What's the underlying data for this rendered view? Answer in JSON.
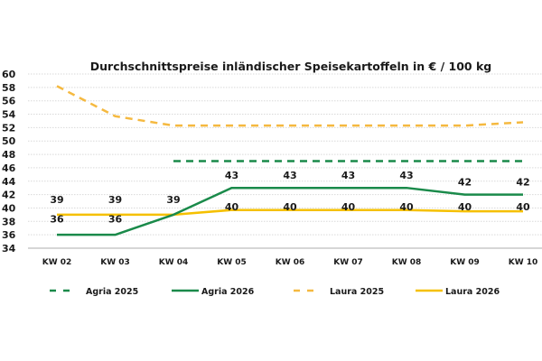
{
  "chart_data": {
    "type": "line",
    "title": "Durchschnittspreise inländischer Speisekartoffeln in € / 100 kg",
    "xlabel": "",
    "ylabel": "",
    "ylim": [
      34,
      60
    ],
    "yticks": [
      34,
      36,
      38,
      40,
      42,
      44,
      46,
      48,
      50,
      52,
      54,
      56,
      58,
      60
    ],
    "grid": true,
    "legend_position": "bottom",
    "categories": [
      "KW 02",
      "KW 03",
      "KW 04",
      "KW 05",
      "KW 06",
      "KW 07",
      "KW 08",
      "KW 09",
      "KW 10"
    ],
    "series": [
      {
        "name": "Agria 2025",
        "color": "#1a8a4a",
        "dashed": true,
        "values": [
          null,
          null,
          47,
          47,
          47,
          47,
          47,
          47,
          47
        ],
        "labels": [
          null,
          null,
          null,
          null,
          null,
          null,
          null,
          null,
          null
        ]
      },
      {
        "name": "Agria 2026",
        "color": "#1a8a4a",
        "dashed": false,
        "values": [
          36,
          36,
          39,
          43,
          43,
          43,
          43,
          42,
          42
        ],
        "labels": [
          "36",
          "36",
          null,
          "43",
          "43",
          "43",
          "43",
          "42",
          "42"
        ]
      },
      {
        "name": "Laura 2025",
        "color": "#f5b940",
        "dashed": true,
        "values": [
          58.2,
          53.7,
          52.3,
          52.3,
          52.3,
          52.3,
          52.3,
          52.3,
          52.8
        ],
        "labels": [
          null,
          null,
          null,
          null,
          null,
          null,
          null,
          null,
          null
        ]
      },
      {
        "name": "Laura 2026",
        "color": "#f5c000",
        "dashed": false,
        "values": [
          39,
          39,
          39,
          39.7,
          39.7,
          39.7,
          39.7,
          39.5,
          39.5
        ],
        "labels": [
          "39",
          "39",
          "39",
          "40",
          "40",
          "40",
          "40",
          "40",
          "40"
        ]
      }
    ]
  }
}
